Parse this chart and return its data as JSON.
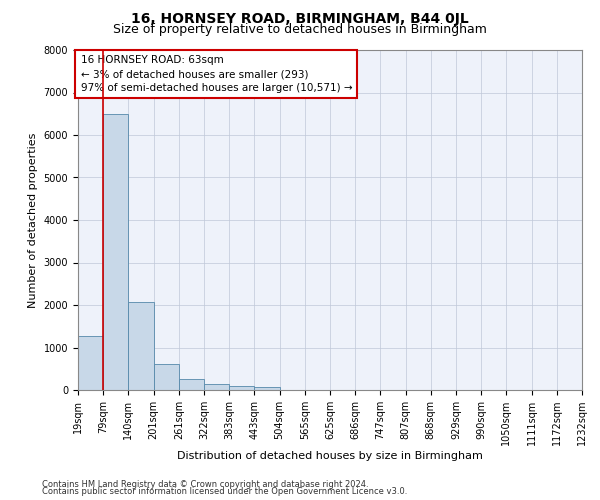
{
  "title": "16, HORNSEY ROAD, BIRMINGHAM, B44 0JL",
  "subtitle": "Size of property relative to detached houses in Birmingham",
  "xlabel": "Distribution of detached houses by size in Birmingham",
  "ylabel": "Number of detached properties",
  "footnote1": "Contains HM Land Registry data © Crown copyright and database right 2024.",
  "footnote2": "Contains public sector information licensed under the Open Government Licence v3.0.",
  "annotation_line1": "16 HORNSEY ROAD: 63sqm",
  "annotation_line2": "← 3% of detached houses are smaller (293)",
  "annotation_line3": "97% of semi-detached houses are larger (10,571) →",
  "bar_values": [
    1280,
    6500,
    2080,
    620,
    260,
    140,
    100,
    80,
    0,
    0,
    0,
    0,
    0,
    0,
    0,
    0,
    0,
    0,
    0,
    0
  ],
  "bar_color": "#c8d8e8",
  "bar_edge_color": "#5588aa",
  "bin_labels": [
    "19sqm",
    "79sqm",
    "140sqm",
    "201sqm",
    "261sqm",
    "322sqm",
    "383sqm",
    "443sqm",
    "504sqm",
    "565sqm",
    "625sqm",
    "686sqm",
    "747sqm",
    "807sqm",
    "868sqm",
    "929sqm",
    "990sqm",
    "1050sqm",
    "1111sqm",
    "1172sqm",
    "1232sqm"
  ],
  "vline_x": 1,
  "vline_color": "#cc0000",
  "ylim": [
    0,
    8000
  ],
  "yticks": [
    0,
    1000,
    2000,
    3000,
    4000,
    5000,
    6000,
    7000,
    8000
  ],
  "bg_color": "#eef2fa",
  "annotation_box_color": "#ffffff",
  "annotation_box_edge": "#cc0000",
  "title_fontsize": 10,
  "subtitle_fontsize": 9,
  "axis_fontsize": 8,
  "tick_fontsize": 7,
  "annotation_fontsize": 7.5,
  "footnote_fontsize": 6
}
